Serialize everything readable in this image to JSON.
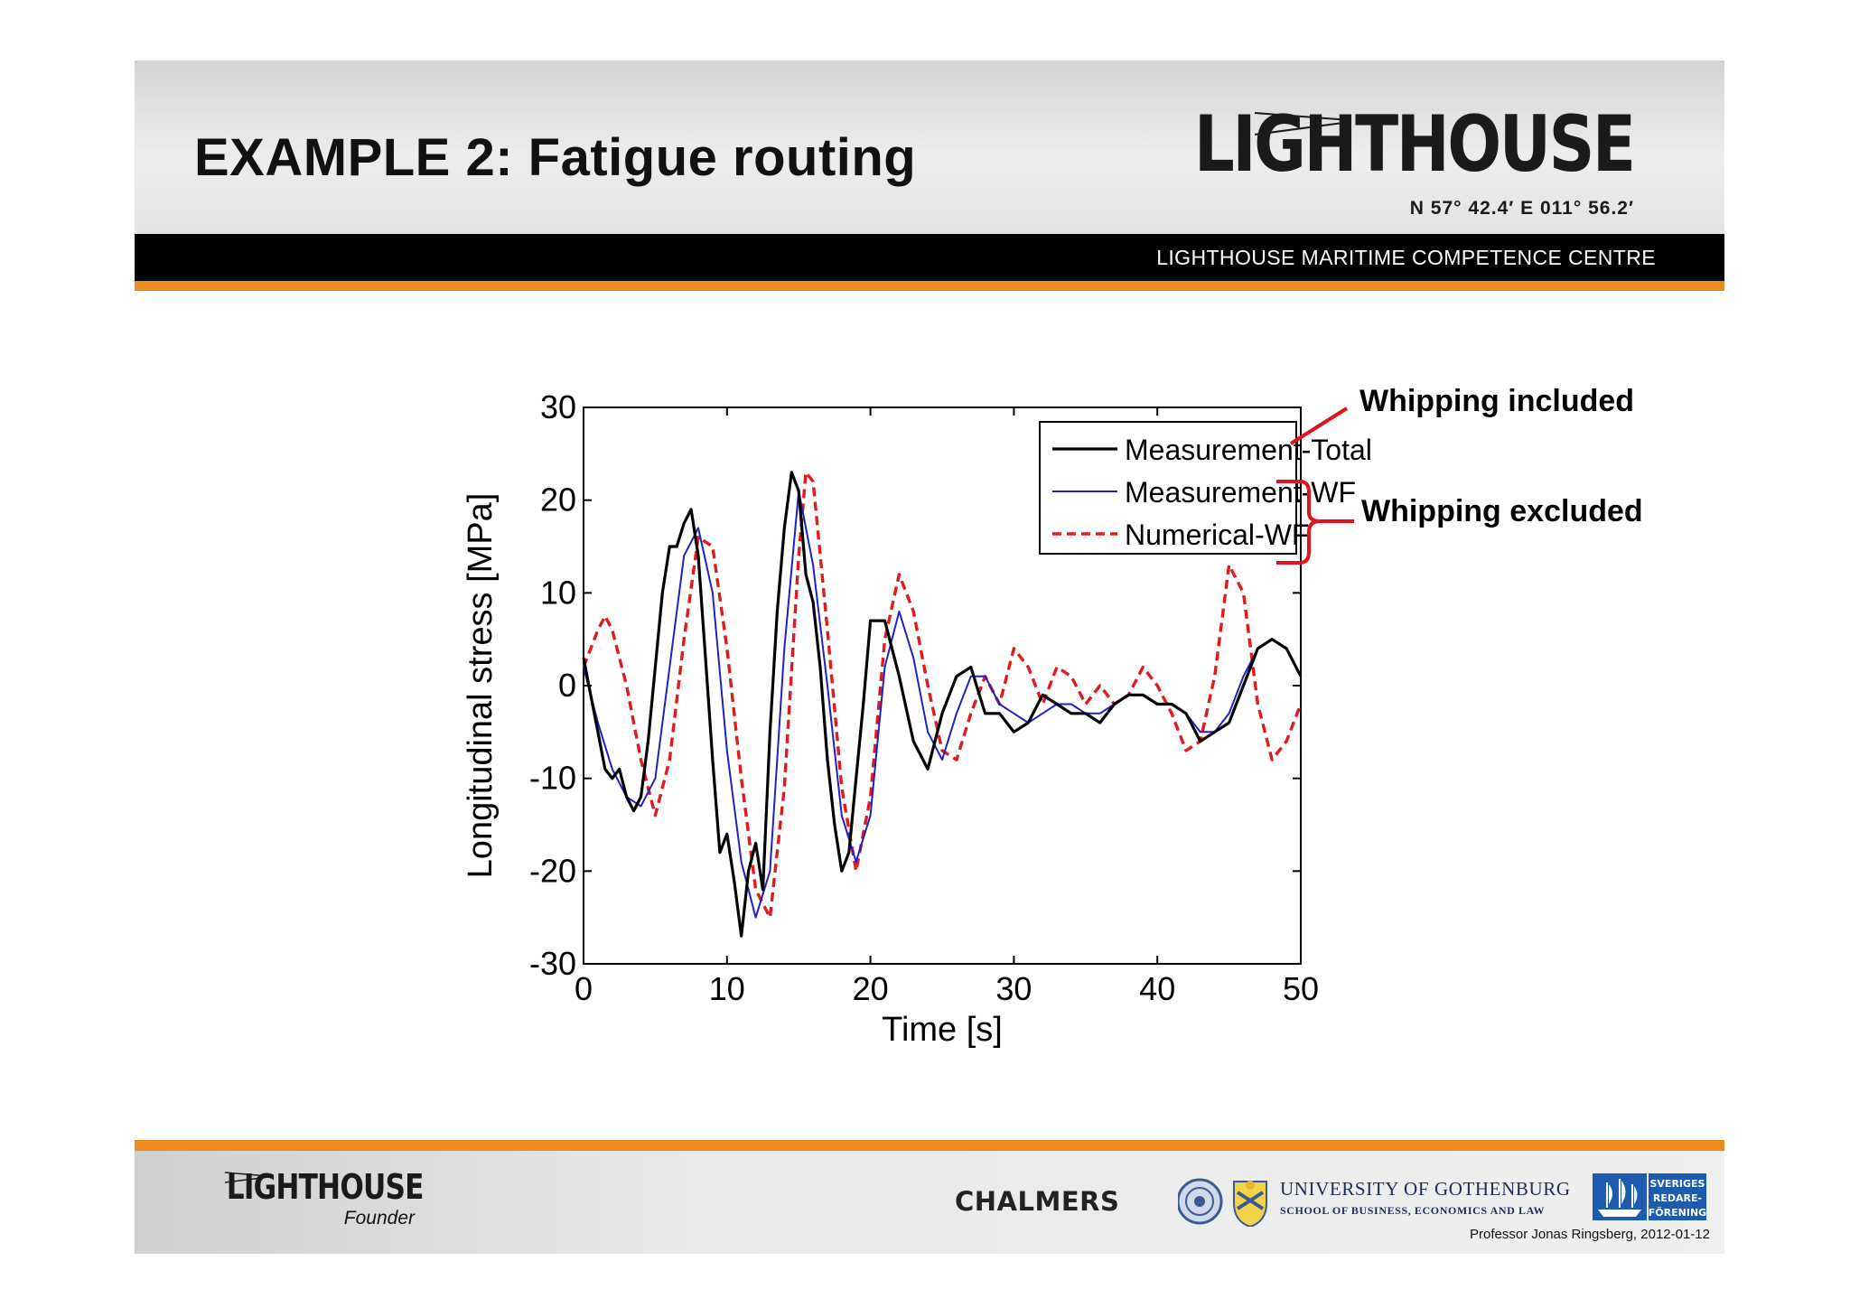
{
  "slide": {
    "title": "EXAMPLE 2: Fatigue routing",
    "logo_text": "LIGHTHOUSE",
    "logo_coords": "N 57° 42.4′  E 011° 56.2′",
    "banner_text": "LIGHTHOUSE MARITIME COMPETENCE CENTRE"
  },
  "annotations": {
    "whipping_included": "Whipping included",
    "whipping_excluded": "Whipping excluded"
  },
  "footer": {
    "logo_text": "LIGHTHOUSE",
    "founder_label": "Founder",
    "chalmers": "CHALMERS",
    "gu_name": "UNIVERSITY OF GOTHENBURG",
    "gu_school": "SCHOOL OF BUSINESS, ECONOMICS AND LAW",
    "srf_lines": [
      "SVERIGES",
      "REDARE-",
      "FÖRENING"
    ],
    "credit": "Professor Jonas Ringsberg, 2012-01-12"
  },
  "colors": {
    "orange": "#ea8a1f",
    "total": "#000000",
    "meas_wf": "#2020c8",
    "num_wf": "#e01b1b",
    "annotation_red": "#e0141a"
  },
  "chart_data": {
    "type": "line",
    "xlabel": "Time [s]",
    "ylabel": "Longitudinal stress [MPa]",
    "xlim": [
      0,
      50
    ],
    "ylim": [
      -30,
      30
    ],
    "xticks": [
      0,
      10,
      20,
      30,
      40,
      50
    ],
    "yticks": [
      -30,
      -20,
      -10,
      0,
      10,
      20,
      30
    ],
    "grid": false,
    "legend_position": "top-right",
    "series": [
      {
        "name": "Measurement-Total",
        "style": "solid",
        "x": [
          0,
          0.5,
          1,
          1.5,
          2,
          2.5,
          3,
          3.5,
          4,
          4.5,
          5,
          5.5,
          6,
          6.5,
          7,
          7.5,
          8,
          8.5,
          9,
          9.5,
          10,
          10.5,
          11,
          11.5,
          12,
          12.5,
          13,
          13.5,
          14,
          14.5,
          15,
          15.5,
          16,
          16.5,
          17,
          17.5,
          18,
          18.5,
          19,
          19.5,
          20,
          21,
          22,
          23,
          24,
          25,
          26,
          27,
          28,
          29,
          30,
          31,
          32,
          33,
          34,
          35,
          36,
          37,
          38,
          39,
          40,
          41,
          42,
          43,
          44,
          45,
          46,
          47,
          48,
          49,
          50
        ],
        "y": [
          3,
          -1,
          -5,
          -9,
          -10,
          -9,
          -12,
          -13.5,
          -12,
          -6,
          2,
          10,
          15,
          15,
          17.5,
          19,
          14,
          3,
          -8,
          -18,
          -16,
          -21,
          -27,
          -20,
          -17,
          -22,
          -5,
          8,
          17,
          23,
          21,
          12,
          9,
          2,
          -8,
          -15,
          -20,
          -18,
          -10,
          -2,
          7,
          7,
          1,
          -6,
          -9,
          -3,
          1,
          2,
          -3,
          -3,
          -5,
          -4,
          -1,
          -2,
          -3,
          -3,
          -4,
          -2,
          -1,
          -1,
          -2,
          -2,
          -3,
          -6,
          -5,
          -4,
          0,
          4,
          5,
          4,
          1
        ]
      },
      {
        "name": "Measurement-WF",
        "style": "solid",
        "x": [
          0,
          1,
          2,
          3,
          4,
          5,
          6,
          7,
          8,
          9,
          10,
          11,
          12,
          13,
          14,
          15,
          16,
          17,
          18,
          19,
          20,
          21,
          22,
          23,
          24,
          25,
          26,
          27,
          28,
          29,
          30,
          31,
          32,
          33,
          34,
          35,
          36,
          37,
          38,
          39,
          40,
          41,
          42,
          43,
          44,
          45,
          46,
          47,
          48,
          49,
          50
        ],
        "y": [
          2,
          -4,
          -9,
          -12,
          -13,
          -10,
          2,
          14,
          17,
          10,
          -7,
          -19,
          -25,
          -20,
          4,
          21,
          13,
          0,
          -14,
          -19,
          -14,
          2,
          8,
          3,
          -5,
          -8,
          -3,
          1,
          1,
          -2,
          -3,
          -4,
          -3,
          -2,
          -2,
          -3,
          -3,
          -2,
          -1,
          -1,
          -2,
          -2,
          -3,
          -5,
          -5,
          -3,
          1,
          4,
          5,
          4,
          1
        ]
      },
      {
        "name": "Numerical-WF",
        "style": "dashed",
        "x": [
          0,
          1,
          1.5,
          2,
          3,
          4,
          5,
          6,
          7,
          8,
          9,
          10,
          11,
          12,
          13,
          14,
          15,
          15.5,
          16,
          17,
          18,
          19,
          20,
          21,
          22,
          23,
          24,
          25,
          26,
          27,
          28,
          29,
          30,
          31,
          32,
          33,
          34,
          35,
          36,
          37,
          38,
          39,
          40,
          41,
          42,
          43,
          44,
          45,
          46,
          47,
          48,
          49,
          50
        ],
        "y": [
          2,
          6,
          7.5,
          6,
          0,
          -8,
          -14,
          -8,
          5,
          16,
          15,
          4,
          -10,
          -22,
          -25,
          -11,
          14,
          23,
          22,
          6,
          -11,
          -20,
          -12,
          5,
          12,
          8,
          0,
          -7,
          -8,
          -3,
          1,
          -2,
          4,
          2,
          -2,
          2,
          1,
          -2,
          0,
          -2,
          -1,
          2,
          0,
          -3,
          -7,
          -6,
          1,
          13,
          10,
          -2,
          -8,
          -6,
          -2
        ]
      }
    ]
  }
}
